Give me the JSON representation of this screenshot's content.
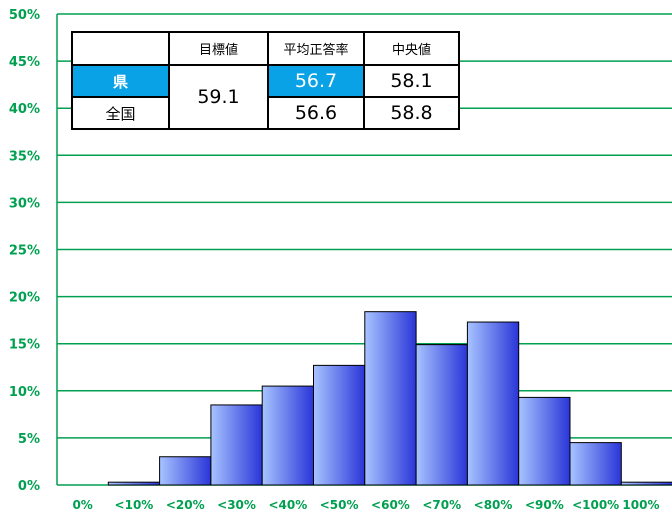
{
  "chart_data": {
    "type": "bar",
    "title": "",
    "xlabel": "",
    "ylabel": "",
    "categories": [
      "<10%",
      "<20%",
      "<30%",
      "<40%",
      "<50%",
      "<60%",
      "<70%",
      "<80%",
      "<90%",
      "<100%",
      "100%"
    ],
    "x_tick_labels": [
      "0%",
      "<10%",
      "<20%",
      "<30%",
      "<40%",
      "<50%",
      "<60%",
      "<70%",
      "<80%",
      "<90%",
      "<100%",
      "100%"
    ],
    "values": [
      0.3,
      3.0,
      8.5,
      10.5,
      12.7,
      18.4,
      14.9,
      17.3,
      9.3,
      4.5,
      0.3
    ],
    "ylim": [
      0,
      50
    ],
    "y_ticks": [
      0,
      5,
      10,
      15,
      20,
      25,
      30,
      35,
      40,
      45,
      50
    ],
    "y_tick_suffix": "%",
    "grid": true,
    "colors": {
      "bar_light": "#a8c4ff",
      "bar_dark": "#2a35d8",
      "bar_stroke": "#000000",
      "axis": "#00a050",
      "grid": "#00a050"
    }
  },
  "summary_table": {
    "headers": [
      "",
      "目標値",
      "平均正答率",
      "中央値"
    ],
    "target_value": "59.1",
    "rows": [
      {
        "label": "県",
        "average": "56.7",
        "median": "58.1"
      },
      {
        "label": "全国",
        "average": "56.6",
        "median": "58.8"
      }
    ],
    "highlight_color": "#0aa2e6"
  }
}
